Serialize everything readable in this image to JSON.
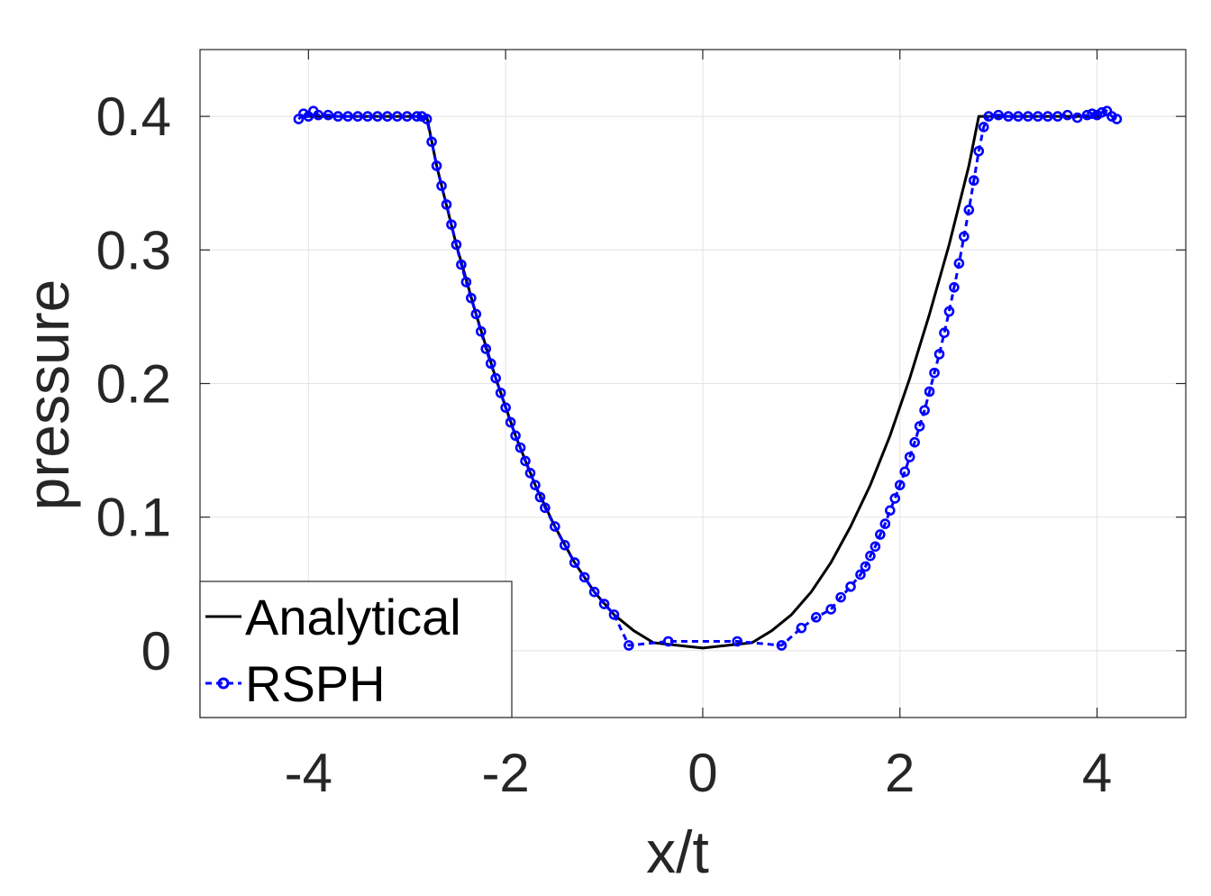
{
  "chart_data": {
    "type": "line",
    "xlabel": "x/t",
    "ylabel": "pressure",
    "xlim": [
      -5.1,
      4.9
    ],
    "ylim": [
      -0.05,
      0.45
    ],
    "xticks": [
      -4,
      -2,
      0,
      2,
      4
    ],
    "xtick_labels": [
      "-4",
      "-2",
      "0",
      "2",
      "4"
    ],
    "yticks": [
      0,
      0.1,
      0.2,
      0.3,
      0.4
    ],
    "ytick_labels": [
      "0",
      "0.1",
      "0.2",
      "0.3",
      "0.4"
    ],
    "grid": true,
    "legend_position": "bottom-left",
    "series": [
      {
        "name": "Analytical",
        "style": "solid",
        "color": "#000000",
        "x": [
          -4.05,
          -2.8,
          -2.7,
          -2.5,
          -2.3,
          -2.1,
          -1.9,
          -1.7,
          -1.5,
          -1.3,
          -1.1,
          -0.9,
          -0.7,
          -0.5,
          0,
          0.5,
          0.7,
          0.9,
          1.1,
          1.3,
          1.5,
          1.7,
          1.9,
          2.1,
          2.3,
          2.5,
          2.7,
          2.8,
          4.05
        ],
        "y": [
          0.4,
          0.4,
          0.363,
          0.304,
          0.252,
          0.204,
          0.161,
          0.124,
          0.093,
          0.066,
          0.044,
          0.027,
          0.015,
          0.006,
          0.002,
          0.006,
          0.015,
          0.027,
          0.044,
          0.066,
          0.093,
          0.124,
          0.161,
          0.204,
          0.252,
          0.304,
          0.363,
          0.4,
          0.4
        ]
      },
      {
        "name": "RSPH",
        "style": "dashed-circle",
        "color": "#0000ff",
        "x": [
          -4.1,
          -4.05,
          -4.0,
          -3.95,
          -3.9,
          -3.8,
          -3.7,
          -3.6,
          -3.5,
          -3.4,
          -3.3,
          -3.2,
          -3.1,
          -3.0,
          -2.9,
          -2.85,
          -2.8,
          -2.75,
          -2.7,
          -2.65,
          -2.6,
          -2.55,
          -2.5,
          -2.45,
          -2.4,
          -2.35,
          -2.3,
          -2.25,
          -2.2,
          -2.15,
          -2.1,
          -2.05,
          -2.0,
          -1.95,
          -1.9,
          -1.85,
          -1.8,
          -1.75,
          -1.7,
          -1.65,
          -1.6,
          -1.5,
          -1.4,
          -1.3,
          -1.2,
          -1.1,
          -1.0,
          -0.9,
          -0.75,
          -0.35,
          0.35,
          0.8,
          1.0,
          1.15,
          1.3,
          1.4,
          1.5,
          1.6,
          1.65,
          1.7,
          1.75,
          1.8,
          1.85,
          1.9,
          1.95,
          2.0,
          2.05,
          2.1,
          2.15,
          2.2,
          2.25,
          2.3,
          2.35,
          2.4,
          2.45,
          2.5,
          2.55,
          2.6,
          2.65,
          2.7,
          2.75,
          2.8,
          2.85,
          2.9,
          3.0,
          3.1,
          3.2,
          3.3,
          3.4,
          3.5,
          3.6,
          3.7,
          3.8,
          3.9,
          3.95,
          4.0,
          4.05,
          4.1,
          4.15,
          4.2
        ],
        "y": [
          0.398,
          0.402,
          0.4,
          0.404,
          0.401,
          0.401,
          0.4,
          0.4,
          0.4,
          0.4,
          0.4,
          0.4,
          0.4,
          0.4,
          0.4,
          0.4,
          0.398,
          0.381,
          0.363,
          0.348,
          0.334,
          0.319,
          0.304,
          0.289,
          0.276,
          0.264,
          0.252,
          0.239,
          0.226,
          0.215,
          0.204,
          0.193,
          0.182,
          0.171,
          0.161,
          0.152,
          0.142,
          0.133,
          0.124,
          0.115,
          0.107,
          0.093,
          0.079,
          0.066,
          0.055,
          0.044,
          0.035,
          0.027,
          0.004,
          0.007,
          0.007,
          0.004,
          0.017,
          0.025,
          0.031,
          0.04,
          0.048,
          0.057,
          0.063,
          0.071,
          0.078,
          0.087,
          0.095,
          0.105,
          0.114,
          0.124,
          0.134,
          0.145,
          0.156,
          0.168,
          0.18,
          0.194,
          0.208,
          0.222,
          0.238,
          0.254,
          0.272,
          0.29,
          0.31,
          0.33,
          0.352,
          0.374,
          0.392,
          0.4,
          0.401,
          0.4,
          0.4,
          0.4,
          0.4,
          0.4,
          0.4,
          0.401,
          0.399,
          0.401,
          0.402,
          0.401,
          0.403,
          0.404,
          0.4,
          0.398
        ]
      }
    ]
  }
}
